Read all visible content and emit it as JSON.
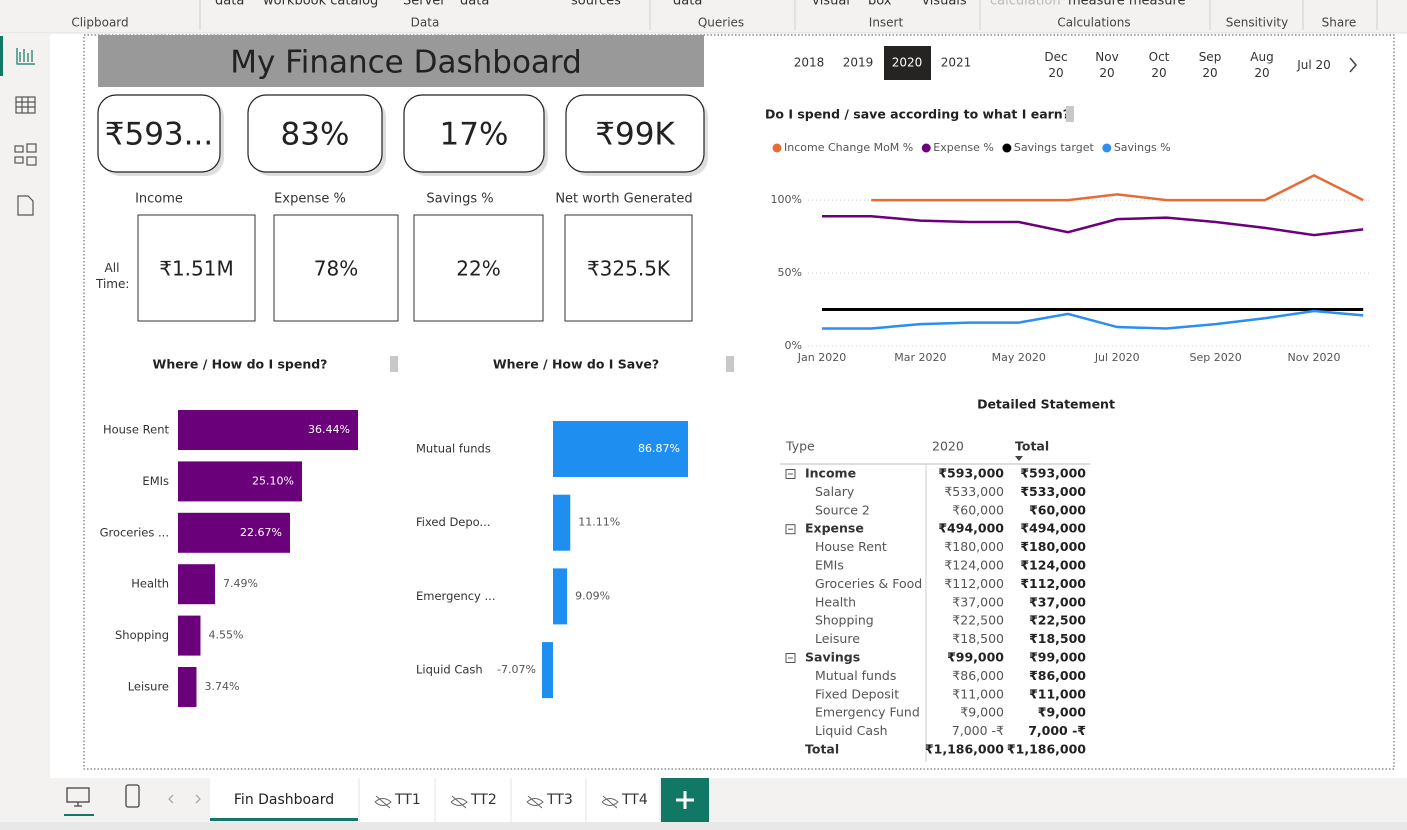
{
  "ribbon": {
    "fragments": [
      "data",
      "workbook catalog",
      "Server",
      "data",
      "sources",
      "data",
      "visual",
      "box",
      "visuals",
      "calculation",
      "measure measure"
    ],
    "groups": [
      "Clipboard",
      "Data",
      "Queries",
      "Insert",
      "Calculations",
      "Sensitivity",
      "Share"
    ]
  },
  "dashboard": {
    "title": "My Finance Dashboard",
    "kpis": [
      "₹593...",
      "83%",
      "17%",
      "₹99K"
    ],
    "kpi_labels": [
      "Income",
      "Expense %",
      "Savings %",
      "Net worth Generated"
    ],
    "all_time_label": "All Time:",
    "all_time_values": [
      "₹1.51M",
      "78%",
      "22%",
      "₹325.5K"
    ],
    "years": [
      "2018",
      "2019",
      "2020",
      "2021"
    ],
    "months": [
      "Dec 20",
      "Nov 20",
      "Oct 20",
      "Sep 20",
      "Aug 20",
      "Jul 20"
    ]
  },
  "chart_data": [
    {
      "type": "hbar",
      "title": "Where / How do I spend?",
      "categories": [
        "House Rent",
        "EMIs",
        "Groceries ...",
        "Health",
        "Shopping",
        "Leisure"
      ],
      "values": [
        36.44,
        25.1,
        22.67,
        7.49,
        4.55,
        3.74
      ],
      "value_labels": [
        "36.44%",
        "25.10%",
        "22.67%",
        "7.49%",
        "4.55%",
        "3.74%"
      ],
      "color": "#6b007b"
    },
    {
      "type": "hbar",
      "title": "Where / How do I Save?",
      "categories": [
        "Mutual funds",
        "Fixed Depo...",
        "Emergency ...",
        "Liquid Cash"
      ],
      "values": [
        86.87,
        11.11,
        9.09,
        -7.07
      ],
      "value_labels": [
        "86.87%",
        "11.11%",
        "9.09%",
        "-7.07%"
      ],
      "color": "#1e8ff0"
    },
    {
      "type": "line",
      "title": "Do I spend / save according to what I earn?",
      "categories": [
        "Jan 2020",
        null,
        "Mar 2020",
        null,
        "May 2020",
        null,
        "Jul 2020",
        null,
        "Sep 2020",
        null,
        "Nov 2020",
        null
      ],
      "series": [
        {
          "name": "Income Change MoM %",
          "color": "#e66c37",
          "values": [
            null,
            100,
            100,
            100,
            100,
            100,
            104,
            100,
            100,
            100,
            117,
            100
          ]
        },
        {
          "name": "Expense %",
          "color": "#6b007b",
          "values": [
            89,
            89,
            86,
            85,
            85,
            78,
            87,
            88,
            85,
            81,
            76,
            80
          ]
        },
        {
          "name": "Savings target",
          "color": "#000000",
          "values": [
            25,
            25,
            25,
            25,
            25,
            25,
            25,
            25,
            25,
            25,
            25,
            25
          ]
        },
        {
          "name": "Savings %",
          "color": "#2b8ef2",
          "values": [
            12,
            12,
            15,
            16,
            16,
            22,
            13,
            12,
            15,
            19,
            24,
            21
          ]
        }
      ],
      "ylim": [
        0,
        120
      ],
      "yticks": [
        {
          "value": 0,
          "label": "0%"
        },
        {
          "value": 50,
          "label": "50%"
        },
        {
          "value": 100,
          "label": "100%"
        }
      ],
      "grid": true
    }
  ],
  "table": {
    "title": "Detailed Statement",
    "header": [
      "Type",
      "2020",
      "Total"
    ],
    "rows": [
      {
        "cells": [
          "Income",
          "₹593,000",
          "₹593,000"
        ],
        "group": true
      },
      {
        "cells": [
          "Salary",
          "₹533,000",
          "₹533,000"
        ]
      },
      {
        "cells": [
          "Source 2",
          "₹60,000",
          "₹60,000"
        ]
      },
      {
        "cells": [
          "Expense",
          "₹494,000",
          "₹494,000"
        ],
        "group": true
      },
      {
        "cells": [
          "House Rent",
          "₹180,000",
          "₹180,000"
        ]
      },
      {
        "cells": [
          "EMIs",
          "₹124,000",
          "₹124,000"
        ]
      },
      {
        "cells": [
          "Groceries & Food",
          "₹112,000",
          "₹112,000"
        ]
      },
      {
        "cells": [
          "Health",
          "₹37,000",
          "₹37,000"
        ]
      },
      {
        "cells": [
          "Shopping",
          "₹22,500",
          "₹22,500"
        ]
      },
      {
        "cells": [
          "Leisure",
          "₹18,500",
          "₹18,500"
        ]
      },
      {
        "cells": [
          "Savings",
          "₹99,000",
          "₹99,000"
        ],
        "group": true
      },
      {
        "cells": [
          "Mutual funds",
          "₹86,000",
          "₹86,000"
        ]
      },
      {
        "cells": [
          "Fixed Deposit",
          "₹11,000",
          "₹11,000"
        ]
      },
      {
        "cells": [
          "Emergency Fund",
          "₹9,000",
          "₹9,000"
        ]
      },
      {
        "cells": [
          "Liquid Cash",
          "7,000 -₹",
          "7,000 -₹"
        ]
      }
    ],
    "total": [
      "Total",
      "₹1,186,000",
      "₹1,186,000"
    ]
  },
  "tabs": [
    "Fin Dashboard",
    "TT1",
    "TT2",
    "TT3",
    "TT4"
  ]
}
